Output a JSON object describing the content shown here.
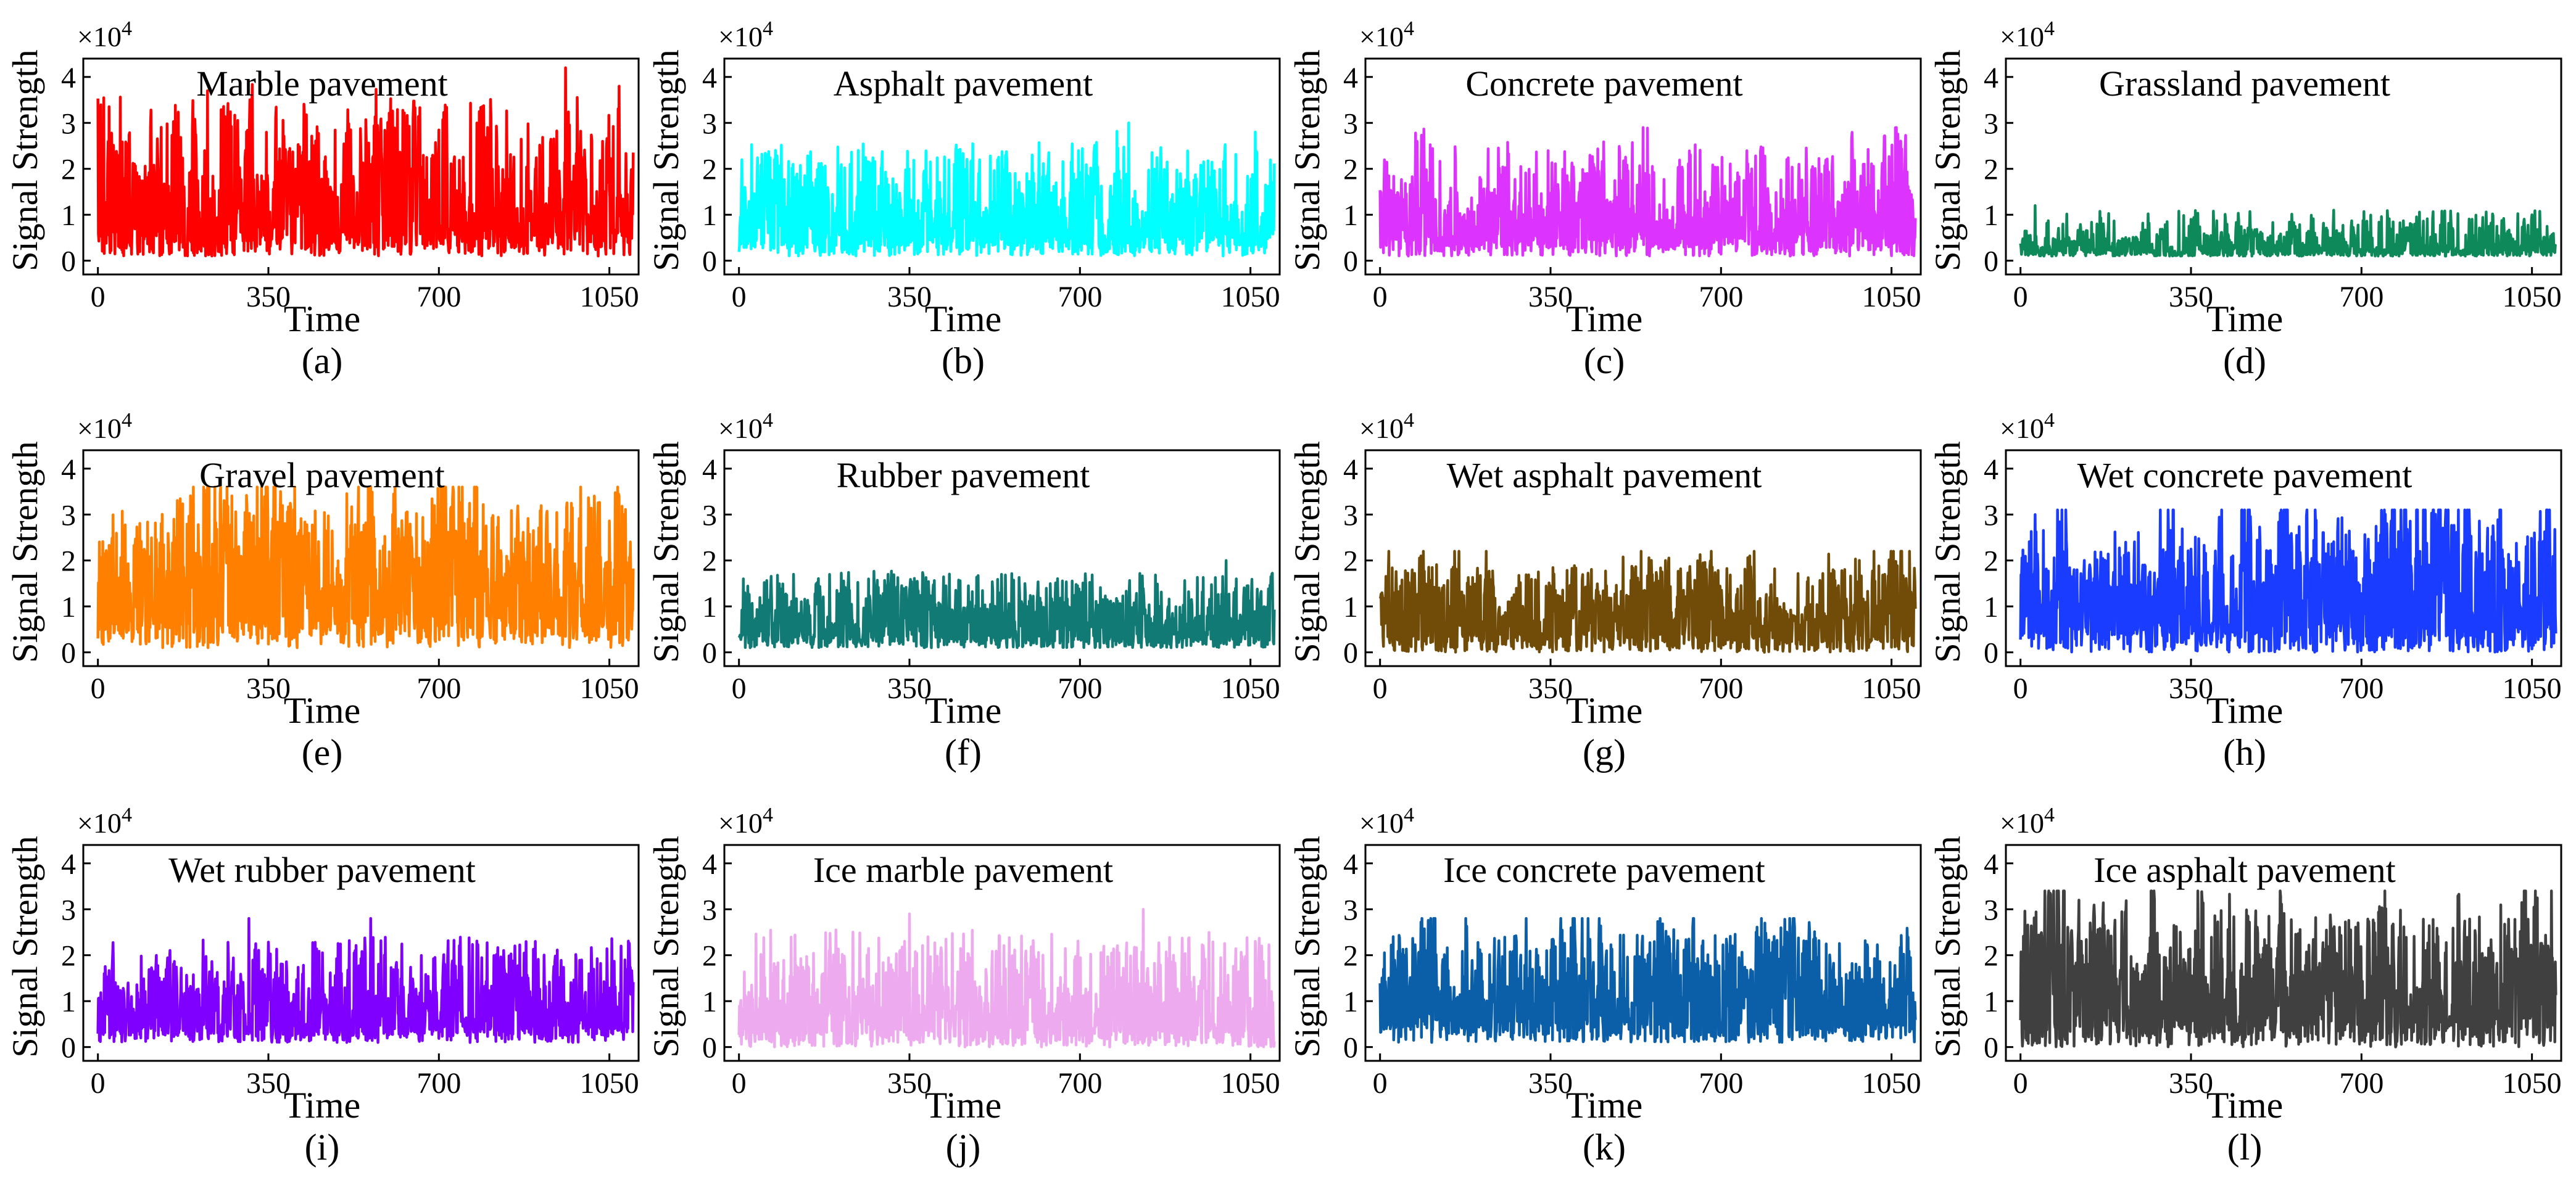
{
  "figure": {
    "common": {
      "xlabel": "Time",
      "ylabel": "Signal Strength",
      "scale_label": "×10",
      "scale_exponent": "4",
      "xticks": [
        0,
        350,
        700,
        1050
      ],
      "yticks": [
        0,
        1,
        2,
        3,
        4
      ],
      "xlim": [
        -30,
        1110
      ],
      "ylim": [
        -0.3,
        4.4
      ]
    }
  },
  "chart_data": [
    {
      "type": "line",
      "subplot": "(a)",
      "title": "Marble pavement",
      "color": "#ff0000",
      "xlabel": "Time",
      "ylabel": "Signal Strength",
      "y_scale": "×10^4",
      "n_points": 1100,
      "series": [
        {
          "name": "Marble pavement",
          "approx_range": [
            0.1,
            4.2
          ],
          "typical_mean": 1.2,
          "peaks": [
            [
              225,
              3.7
            ],
            [
              960,
              4.2
            ],
            [
              1070,
              3.8
            ]
          ]
        }
      ]
    },
    {
      "type": "line",
      "subplot": "(b)",
      "title": "Asphalt pavement",
      "color": "#00ffff",
      "xlabel": "Time",
      "ylabel": "Signal Strength",
      "y_scale": "×10^4",
      "n_points": 1100,
      "series": [
        {
          "name": "Asphalt pavement",
          "approx_range": [
            0.1,
            3.0
          ],
          "typical_mean": 0.9,
          "peaks": [
            [
              800,
              3.0
            ],
            [
              1060,
              2.8
            ]
          ]
        }
      ]
    },
    {
      "type": "line",
      "subplot": "(c)",
      "title": "Concrete pavement",
      "color": "#dd33ff",
      "xlabel": "Time",
      "ylabel": "Signal Strength",
      "y_scale": "×10^4",
      "n_points": 1100,
      "series": [
        {
          "name": "Concrete pavement",
          "approx_range": [
            0.1,
            2.9
          ],
          "typical_mean": 0.9,
          "peaks": [
            [
              540,
              2.9
            ],
            [
              1060,
              2.9
            ]
          ]
        }
      ]
    },
    {
      "type": "line",
      "subplot": "(d)",
      "title": "Grassland pavement",
      "color": "#0e8a5a",
      "xlabel": "Time",
      "ylabel": "Signal Strength",
      "y_scale": "×10^4",
      "n_points": 1100,
      "series": [
        {
          "name": "Grassland pavement",
          "approx_range": [
            0.1,
            1.3
          ],
          "typical_mean": 0.3,
          "peaks": [
            [
              30,
              1.2
            ],
            [
              1050,
              1.0
            ]
          ]
        }
      ]
    },
    {
      "type": "line",
      "subplot": "(e)",
      "title": "Gravel pavement",
      "color": "#ff8000",
      "xlabel": "Time",
      "ylabel": "Signal Strength",
      "y_scale": "×10^4",
      "n_points": 1100,
      "series": [
        {
          "name": "Gravel pavement",
          "approx_range": [
            0.1,
            3.6
          ],
          "typical_mean": 1.4,
          "peaks": [
            [
              225,
              3.6
            ],
            [
              560,
              3.6
            ]
          ]
        }
      ]
    },
    {
      "type": "line",
      "subplot": "(f)",
      "title": "Rubber pavement",
      "color": "#127a74",
      "xlabel": "Time",
      "ylabel": "Signal Strength",
      "y_scale": "×10^4",
      "n_points": 1100,
      "series": [
        {
          "name": "Rubber pavement",
          "approx_range": [
            0.1,
            2.0
          ],
          "typical_mean": 0.6,
          "peaks": [
            [
              1000,
              2.0
            ]
          ]
        }
      ]
    },
    {
      "type": "line",
      "subplot": "(g)",
      "title": "Wet asphalt pavement",
      "color": "#704c08",
      "xlabel": "Time",
      "ylabel": "Signal Strength",
      "y_scale": "×10^4",
      "n_points": 1100,
      "series": [
        {
          "name": "Wet asphalt pavement",
          "approx_range": [
            0.0,
            2.2
          ],
          "typical_mean": 0.8,
          "peaks": [
            [
              680,
              2.2
            ]
          ]
        }
      ]
    },
    {
      "type": "line",
      "subplot": "(h)",
      "title": "Wet concrete pavement",
      "color": "#1a3cff",
      "xlabel": "Time",
      "ylabel": "Signal Strength",
      "y_scale": "×10^4",
      "n_points": 1100,
      "series": [
        {
          "name": "Wet concrete pavement",
          "approx_range": [
            0.0,
            3.1
          ],
          "typical_mean": 1.3,
          "peaks": [
            [
              470,
              3.1
            ],
            [
              30,
              3.0
            ]
          ]
        }
      ]
    },
    {
      "type": "line",
      "subplot": "(i)",
      "title": "Wet rubber pavement",
      "color": "#8000ff",
      "xlabel": "Time",
      "ylabel": "Signal Strength",
      "y_scale": "×10^4",
      "n_points": 1100,
      "series": [
        {
          "name": "Wet rubber pavement",
          "approx_range": [
            0.1,
            2.8
          ],
          "typical_mean": 0.8,
          "peaks": [
            [
              310,
              2.8
            ],
            [
              560,
              2.8
            ]
          ]
        }
      ]
    },
    {
      "type": "line",
      "subplot": "(j)",
      "title": "Ice marble pavement",
      "color": "#eeaaee",
      "xlabel": "Time",
      "ylabel": "Signal Strength",
      "y_scale": "×10^4",
      "n_points": 1100,
      "series": [
        {
          "name": "Ice marble pavement",
          "approx_range": [
            0.0,
            3.0
          ],
          "typical_mean": 0.8,
          "peaks": [
            [
              830,
              3.0
            ],
            [
              350,
              2.9
            ]
          ]
        }
      ]
    },
    {
      "type": "line",
      "subplot": "(k)",
      "title": "Ice concrete pavement",
      "color": "#0a5fa8",
      "xlabel": "Time",
      "ylabel": "Signal Strength",
      "y_scale": "×10^4",
      "n_points": 1100,
      "series": [
        {
          "name": "Ice concrete pavement",
          "approx_range": [
            0.1,
            2.8
          ],
          "typical_mean": 1.0,
          "peaks": [
            [
              300,
              2.8
            ]
          ]
        }
      ]
    },
    {
      "type": "line",
      "subplot": "(l)",
      "title": "Ice asphalt pavement",
      "color": "#404040",
      "xlabel": "Time",
      "ylabel": "Signal Strength",
      "y_scale": "×10^4",
      "n_points": 1100,
      "series": [
        {
          "name": "Ice asphalt pavement",
          "approx_range": [
            0.0,
            3.4
          ],
          "typical_mean": 1.3,
          "peaks": [
            [
              1090,
              3.4
            ],
            [
              120,
              3.2
            ]
          ]
        }
      ]
    }
  ]
}
